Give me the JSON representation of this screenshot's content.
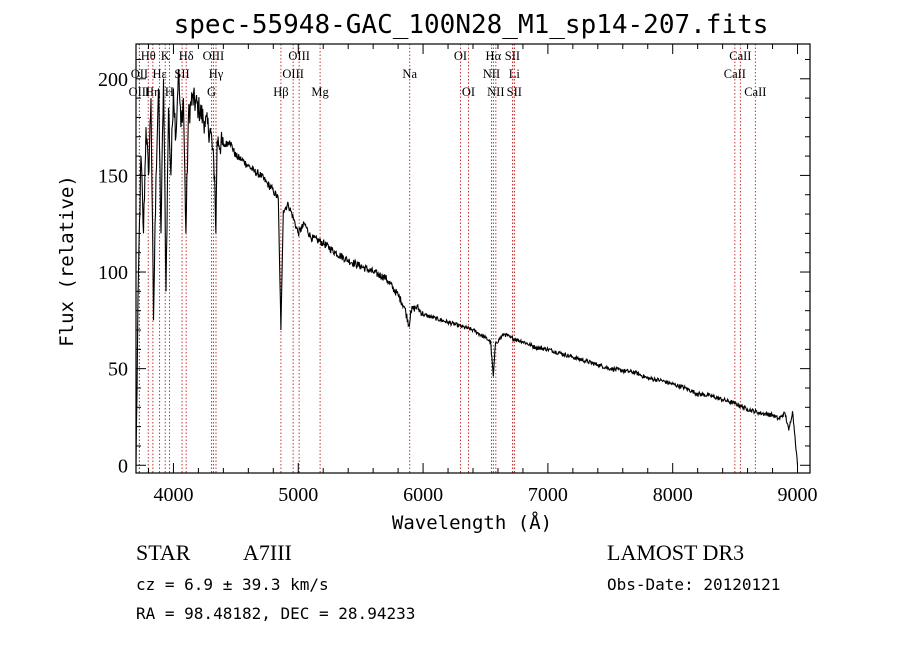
{
  "chart_data": {
    "type": "line",
    "title": "spec-55948-GAC_100N28_M1_sp14-207.fits",
    "xlabel": "Wavelength (Å)",
    "ylabel": "Flux (relative)",
    "xlim": [
      3700,
      9100
    ],
    "ylim": [
      -4,
      218
    ],
    "x_ticks": [
      4000,
      5000,
      6000,
      7000,
      8000,
      9000
    ],
    "y_ticks": [
      0,
      50,
      100,
      150,
      200
    ],
    "grid": false,
    "series": [
      {
        "name": "flux",
        "x": [
          3700,
          3720,
          3740,
          3760,
          3780,
          3800,
          3820,
          3840,
          3860,
          3880,
          3900,
          3920,
          3940,
          3960,
          3980,
          4000,
          4020,
          4040,
          4060,
          4080,
          4100,
          4120,
          4150,
          4200,
          4250,
          4300,
          4330,
          4340,
          4350,
          4400,
          4450,
          4500,
          4550,
          4600,
          4650,
          4700,
          4750,
          4800,
          4840,
          4861,
          4880,
          4920,
          4960,
          5000,
          5050,
          5100,
          5200,
          5300,
          5400,
          5500,
          5600,
          5700,
          5800,
          5850,
          5890,
          5900,
          5950,
          6000,
          6100,
          6200,
          6300,
          6400,
          6500,
          6540,
          6563,
          6580,
          6650,
          6700,
          6800,
          6900,
          7000,
          7100,
          7200,
          7300,
          7400,
          7500,
          7600,
          7700,
          7800,
          7900,
          8000,
          8100,
          8200,
          8300,
          8400,
          8500,
          8600,
          8700,
          8800,
          8850,
          8900,
          8930,
          8960,
          8980,
          9000
        ],
        "values": [
          0,
          100,
          160,
          120,
          175,
          150,
          190,
          75,
          150,
          195,
          120,
          200,
          90,
          185,
          150,
          195,
          170,
          205,
          175,
          190,
          120,
          180,
          190,
          185,
          178,
          172,
          150,
          120,
          168,
          165,
          168,
          160,
          158,
          155,
          152,
          150,
          146,
          142,
          138,
          70,
          132,
          135,
          128,
          120,
          125,
          118,
          115,
          110,
          106,
          103,
          100,
          97,
          88,
          82,
          72,
          80,
          82,
          78,
          76,
          74,
          72,
          70,
          66,
          64,
          46,
          63,
          68,
          66,
          64,
          61,
          60,
          58,
          56,
          54,
          52,
          50,
          49,
          48,
          45,
          44,
          42,
          40,
          37,
          36,
          34,
          32,
          29,
          27,
          26,
          24,
          27,
          18,
          28,
          15,
          0
        ]
      }
    ],
    "spectral_lines": [
      {
        "label": "Hθ",
        "wl": 3798,
        "row": 1
      },
      {
        "label": "OII",
        "wl": 3727,
        "row": 2
      },
      {
        "label": "OIII",
        "wl": 3727,
        "row": 3
      },
      {
        "label": "Hη",
        "wl": 3835,
        "row": 3
      },
      {
        "label": "Hε",
        "wl": 3889,
        "row": 2
      },
      {
        "label": "K",
        "wl": 3934,
        "row": 1
      },
      {
        "label": "H",
        "wl": 3968,
        "row": 3
      },
      {
        "label": "SII",
        "wl": 4069,
        "row": 2
      },
      {
        "label": "Hδ",
        "wl": 4102,
        "row": 1
      },
      {
        "label": "OIII",
        "wl": 4320,
        "row": 1
      },
      {
        "label": "Hγ",
        "wl": 4341,
        "row": 2
      },
      {
        "label": "G",
        "wl": 4305,
        "row": 3
      },
      {
        "label": "Hβ",
        "wl": 4861,
        "row": 3
      },
      {
        "label": "OIII",
        "wl": 5007,
        "row": 1
      },
      {
        "label": "OIII",
        "wl": 4959,
        "row": 2
      },
      {
        "label": "Mg",
        "wl": 5175,
        "row": 3
      },
      {
        "label": "Na",
        "wl": 5893,
        "row": 2
      },
      {
        "label": "OI",
        "wl": 6300,
        "row": 1
      },
      {
        "label": "OI",
        "wl": 6364,
        "row": 3
      },
      {
        "label": "Hα",
        "wl": 6563,
        "row": 1
      },
      {
        "label": "NII",
        "wl": 6548,
        "row": 2
      },
      {
        "label": "NII",
        "wl": 6583,
        "row": 3
      },
      {
        "label": "SII",
        "wl": 6716,
        "row": 1
      },
      {
        "label": "Li",
        "wl": 6731,
        "row": 2
      },
      {
        "label": "SII",
        "wl": 6731,
        "row": 3
      },
      {
        "label": "CaII",
        "wl": 8542,
        "row": 1
      },
      {
        "label": "CaII",
        "wl": 8498,
        "row": 2
      },
      {
        "label": "CaII",
        "wl": 8662,
        "row": 3
      }
    ]
  },
  "info": {
    "object_type": "STAR",
    "subclass": "A7III",
    "survey": "LAMOST DR3",
    "redshift": "cz = 6.9 ± 39.3 km/s",
    "obs_date": "Obs-Date: 20120121",
    "coords": "RA =  98.48182, DEC =  28.94233"
  }
}
